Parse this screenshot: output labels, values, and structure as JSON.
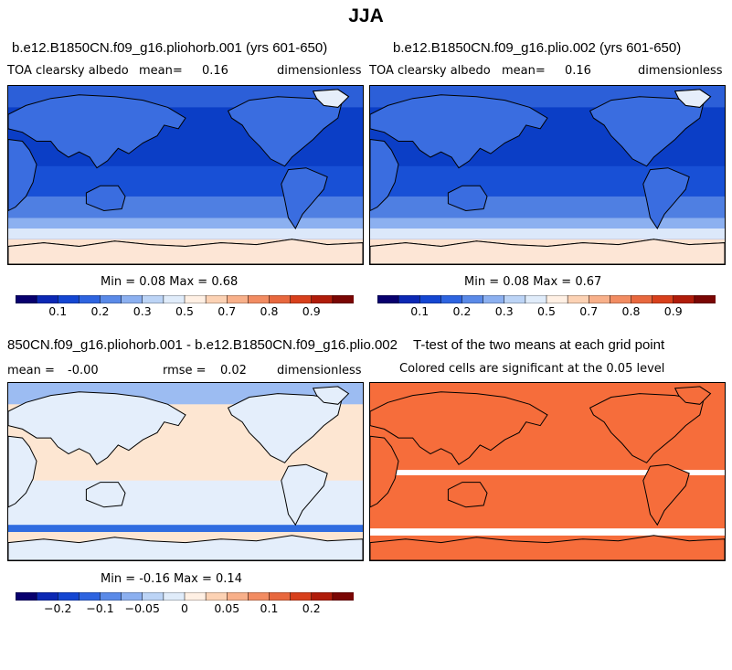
{
  "title": "JJA",
  "panels": [
    {
      "title": "b.e12.B1850CN.f09_g16.pliohorb.001 (yrs 601-650)",
      "variable": "TOA clearsky albedo",
      "mean_label": "mean=",
      "mean_value": "0.16",
      "units": "dimensionless",
      "minmax": "Min =   0.08  Max =   0.68"
    },
    {
      "title": "b.e12.B1850CN.f09_g16.plio.002 (yrs 601-650)",
      "variable": "TOA clearsky albedo",
      "mean_label": "mean=",
      "mean_value": "0.16",
      "units": "dimensionless",
      "minmax": "Min =   0.08  Max =   0.67"
    },
    {
      "title": "850CN.f09_g16.pliohorb.001 - b.e12.B1850CN.f09_g16.plio.002",
      "mean_label": "mean =",
      "mean_value": "-0.00",
      "rmse_label": "rmse =",
      "rmse_value": "0.02",
      "units": "dimensionless",
      "minmax": "Min =  -0.16  Max =   0.14"
    },
    {
      "title": "T-test of the two means at each grid point",
      "subtitle": "Colored cells are significant at the 0.05 level"
    }
  ],
  "chart_data": [
    {
      "type": "heatmap",
      "title": "b.e12.B1850CN.f09_g16.pliohorb.001 (yrs 601-650)",
      "field": "TOA clearsky albedo",
      "units": "dimensionless",
      "mean": 0.16,
      "min": 0.08,
      "max": 0.68,
      "colorbar_ticks": [
        "0.1",
        "0.2",
        "0.3",
        "0.5",
        "0.7",
        "0.8",
        "0.9"
      ]
    },
    {
      "type": "heatmap",
      "title": "b.e12.B1850CN.f09_g16.plio.002 (yrs 601-650)",
      "field": "TOA clearsky albedo",
      "units": "dimensionless",
      "mean": 0.16,
      "min": 0.08,
      "max": 0.67,
      "colorbar_ticks": [
        "0.1",
        "0.2",
        "0.3",
        "0.5",
        "0.7",
        "0.8",
        "0.9"
      ]
    },
    {
      "type": "heatmap",
      "title": "850CN.f09_g16.pliohorb.001 - b.e12.B1850CN.f09_g16.plio.002",
      "units": "dimensionless",
      "mean": -0.0,
      "rmse": 0.02,
      "min": -0.16,
      "max": 0.14,
      "colorbar_ticks": [
        "-0.2",
        "-0.1",
        "-0.05",
        "0",
        "0.05",
        "0.1",
        "0.2"
      ]
    },
    {
      "type": "heatmap",
      "title": "T-test of the two means at each grid point",
      "subtitle": "Colored cells are significant at the 0.05 level"
    }
  ],
  "colorbar": {
    "colors": [
      "#08006e",
      "#0c28b4",
      "#1446d2",
      "#2e64e0",
      "#5a8ae8",
      "#8cb0f0",
      "#bcd4f6",
      "#e0ecfa",
      "#fff0e4",
      "#fcd2b4",
      "#f8b08a",
      "#f28c62",
      "#e8683e",
      "#d8401c",
      "#b01c0a",
      "#7a0604"
    ]
  },
  "colors": {
    "sig_orange": "#f66d3b",
    "diff_land": "#e4eefb",
    "diff_ocean_pos": "#fde6d2",
    "ocean_deep": "#0a3fc8",
    "ocean_mid": "#1c5ce0"
  }
}
